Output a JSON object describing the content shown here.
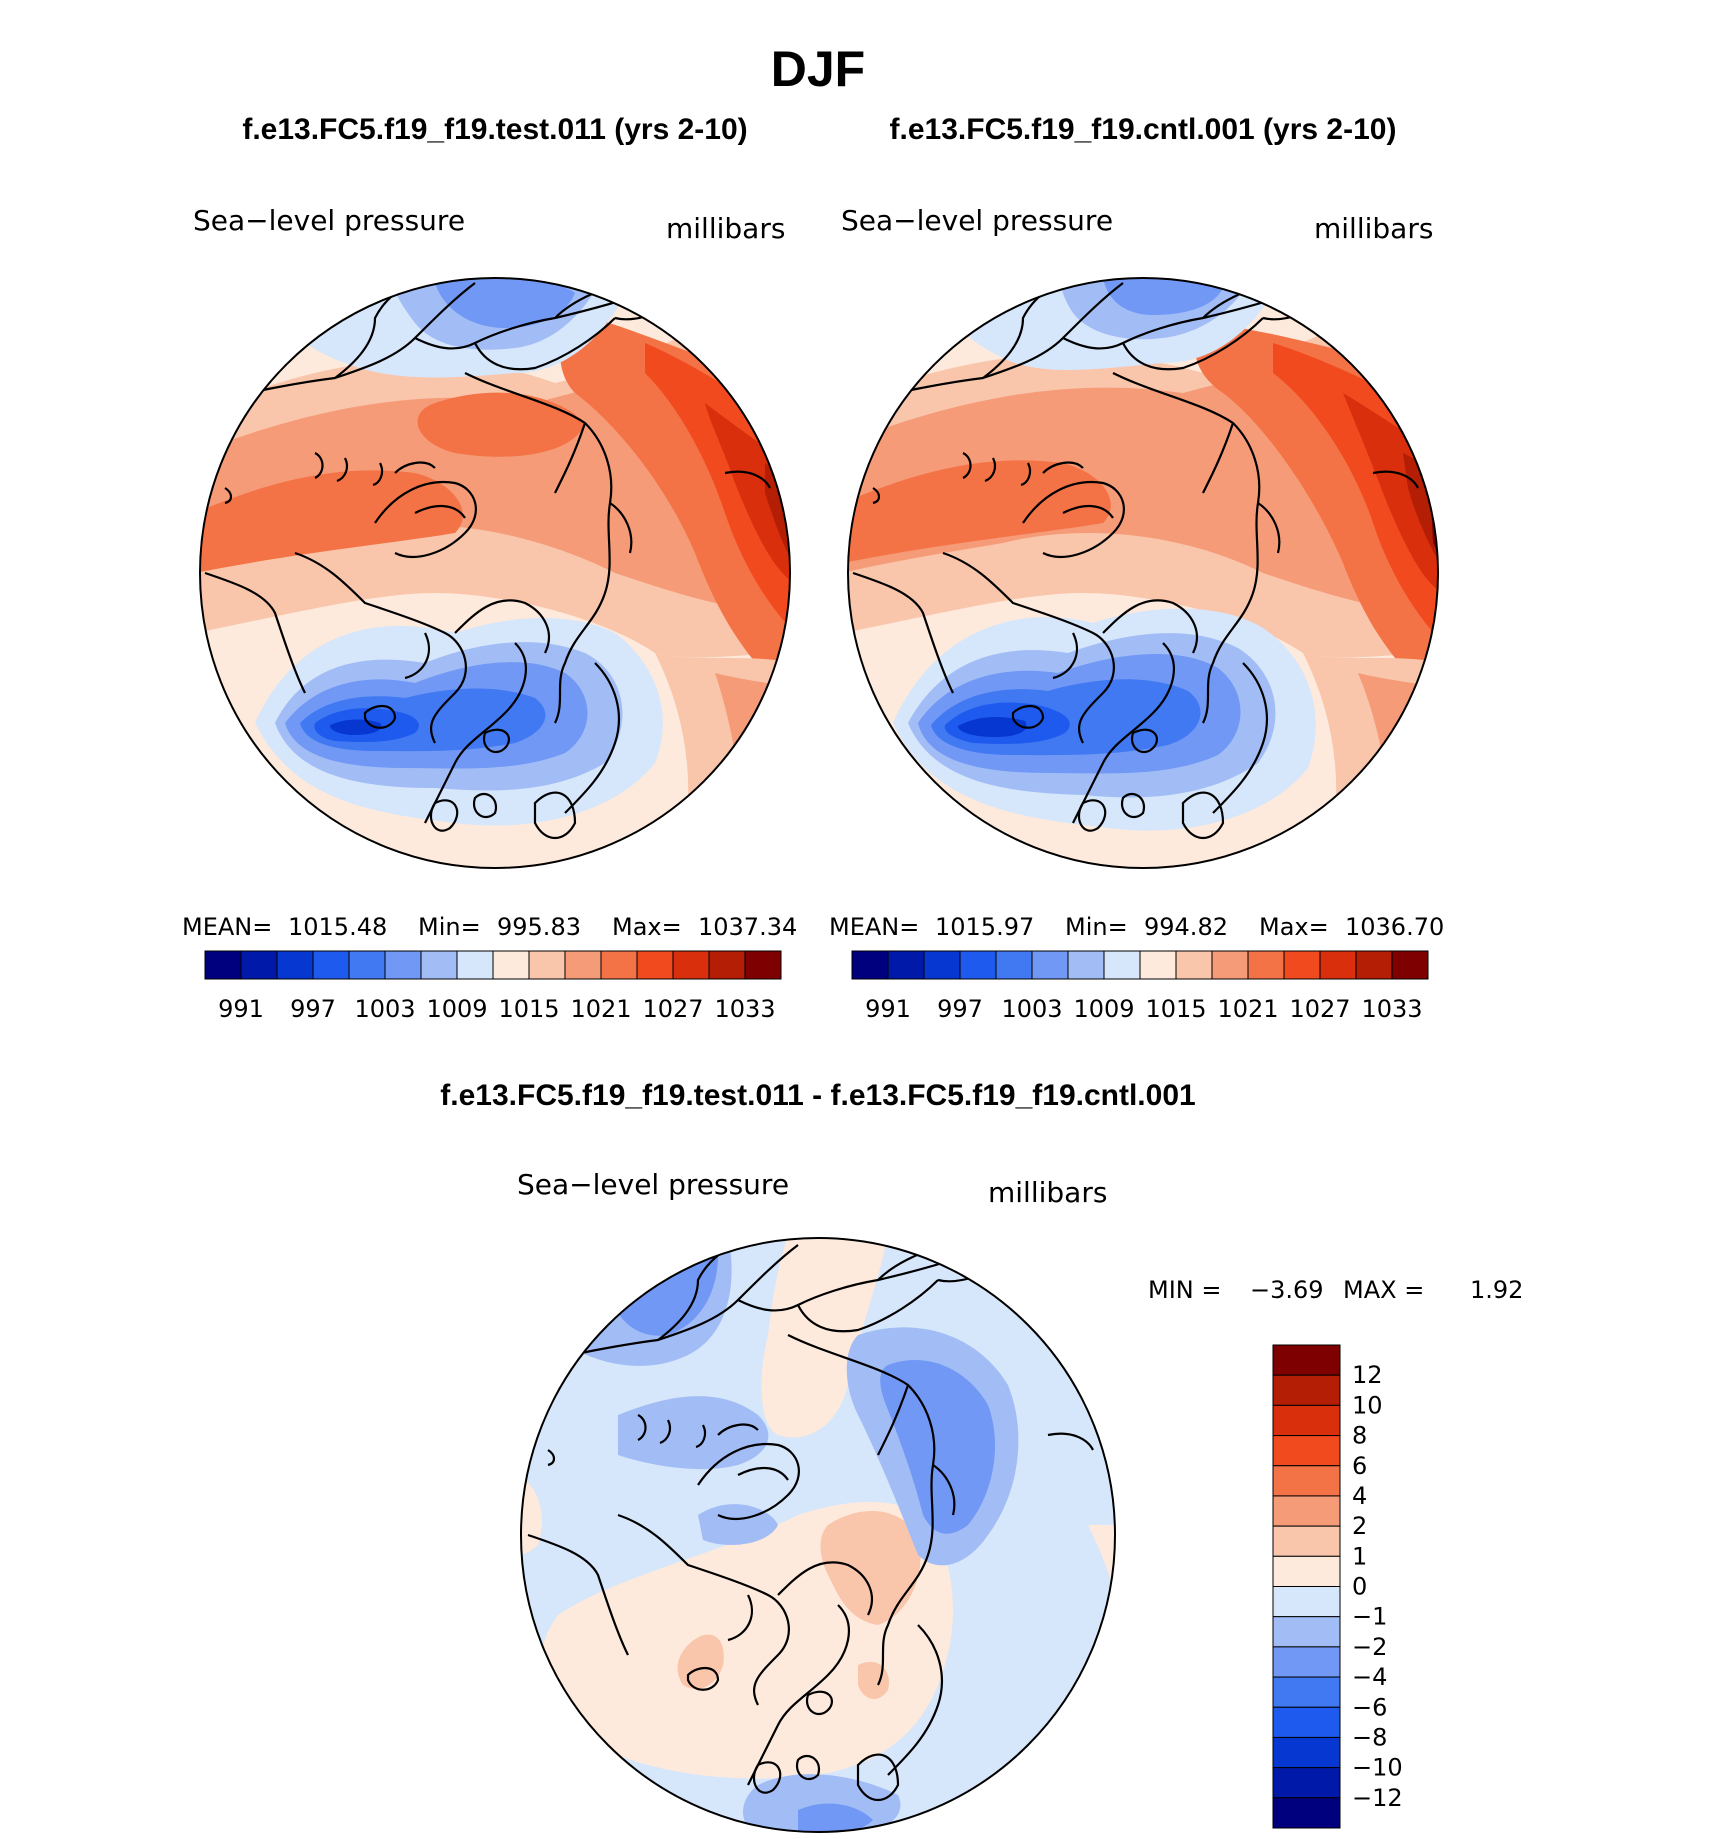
{
  "season": "DJF",
  "variable": "Sea−level pressure",
  "units": "millibars",
  "difference_title": "f.e13.FC5.f19_f19.test.011 - f.e13.FC5.f19_f19.cntl.001",
  "panels": [
    {
      "title": "f.e13.FC5.f19_f19.test.011 (yrs 2-10)",
      "stats": {
        "mean_label": "MEAN=",
        "mean": "1015.48",
        "min_label": "Min=",
        "min": "995.83",
        "max_label": "Max=",
        "max": "1037.34"
      }
    },
    {
      "title": "f.e13.FC5.f19_f19.cntl.001 (yrs 2-10)",
      "stats": {
        "mean_label": "MEAN=",
        "mean": "1015.97",
        "min_label": "Min=",
        "min": "994.82",
        "max_label": "Max=",
        "max": "1036.70"
      }
    }
  ],
  "colorbar_levels": {
    "abs": [
      "991",
      "997",
      "1003",
      "1009",
      "1015",
      "1021",
      "1027",
      "1033"
    ],
    "diff": [
      "12",
      "10",
      "8",
      "6",
      "4",
      "2",
      "1",
      "0",
      "−1",
      "−2",
      "−4",
      "−6",
      "−8",
      "−10",
      "−12"
    ]
  },
  "difference_stats": {
    "min_label": "MIN =",
    "min": "−3.69",
    "max_label": "MAX =",
    "max": "1.92"
  },
  "colors": {
    "abs": [
      "#00007f",
      "#0019a8",
      "#0638d1",
      "#1f5aee",
      "#4179f3",
      "#7198f4",
      "#a2bdf6",
      "#d6e6fb",
      "#fdeadc",
      "#f9c6ac",
      "#f59b78",
      "#f47346",
      "#f14a1e",
      "#d92f0c",
      "#b31e05",
      "#7f0000"
    ],
    "diff_top_to_bottom": [
      "#7f0000",
      "#b31e05",
      "#d92f0c",
      "#f14a1e",
      "#f47346",
      "#f59b78",
      "#f9c6ac",
      "#fdeadc",
      "#d6e6fb",
      "#a2bdf6",
      "#7198f4",
      "#4179f3",
      "#1f5aee",
      "#0638d1",
      "#0019a8",
      "#00007f"
    ]
  }
}
